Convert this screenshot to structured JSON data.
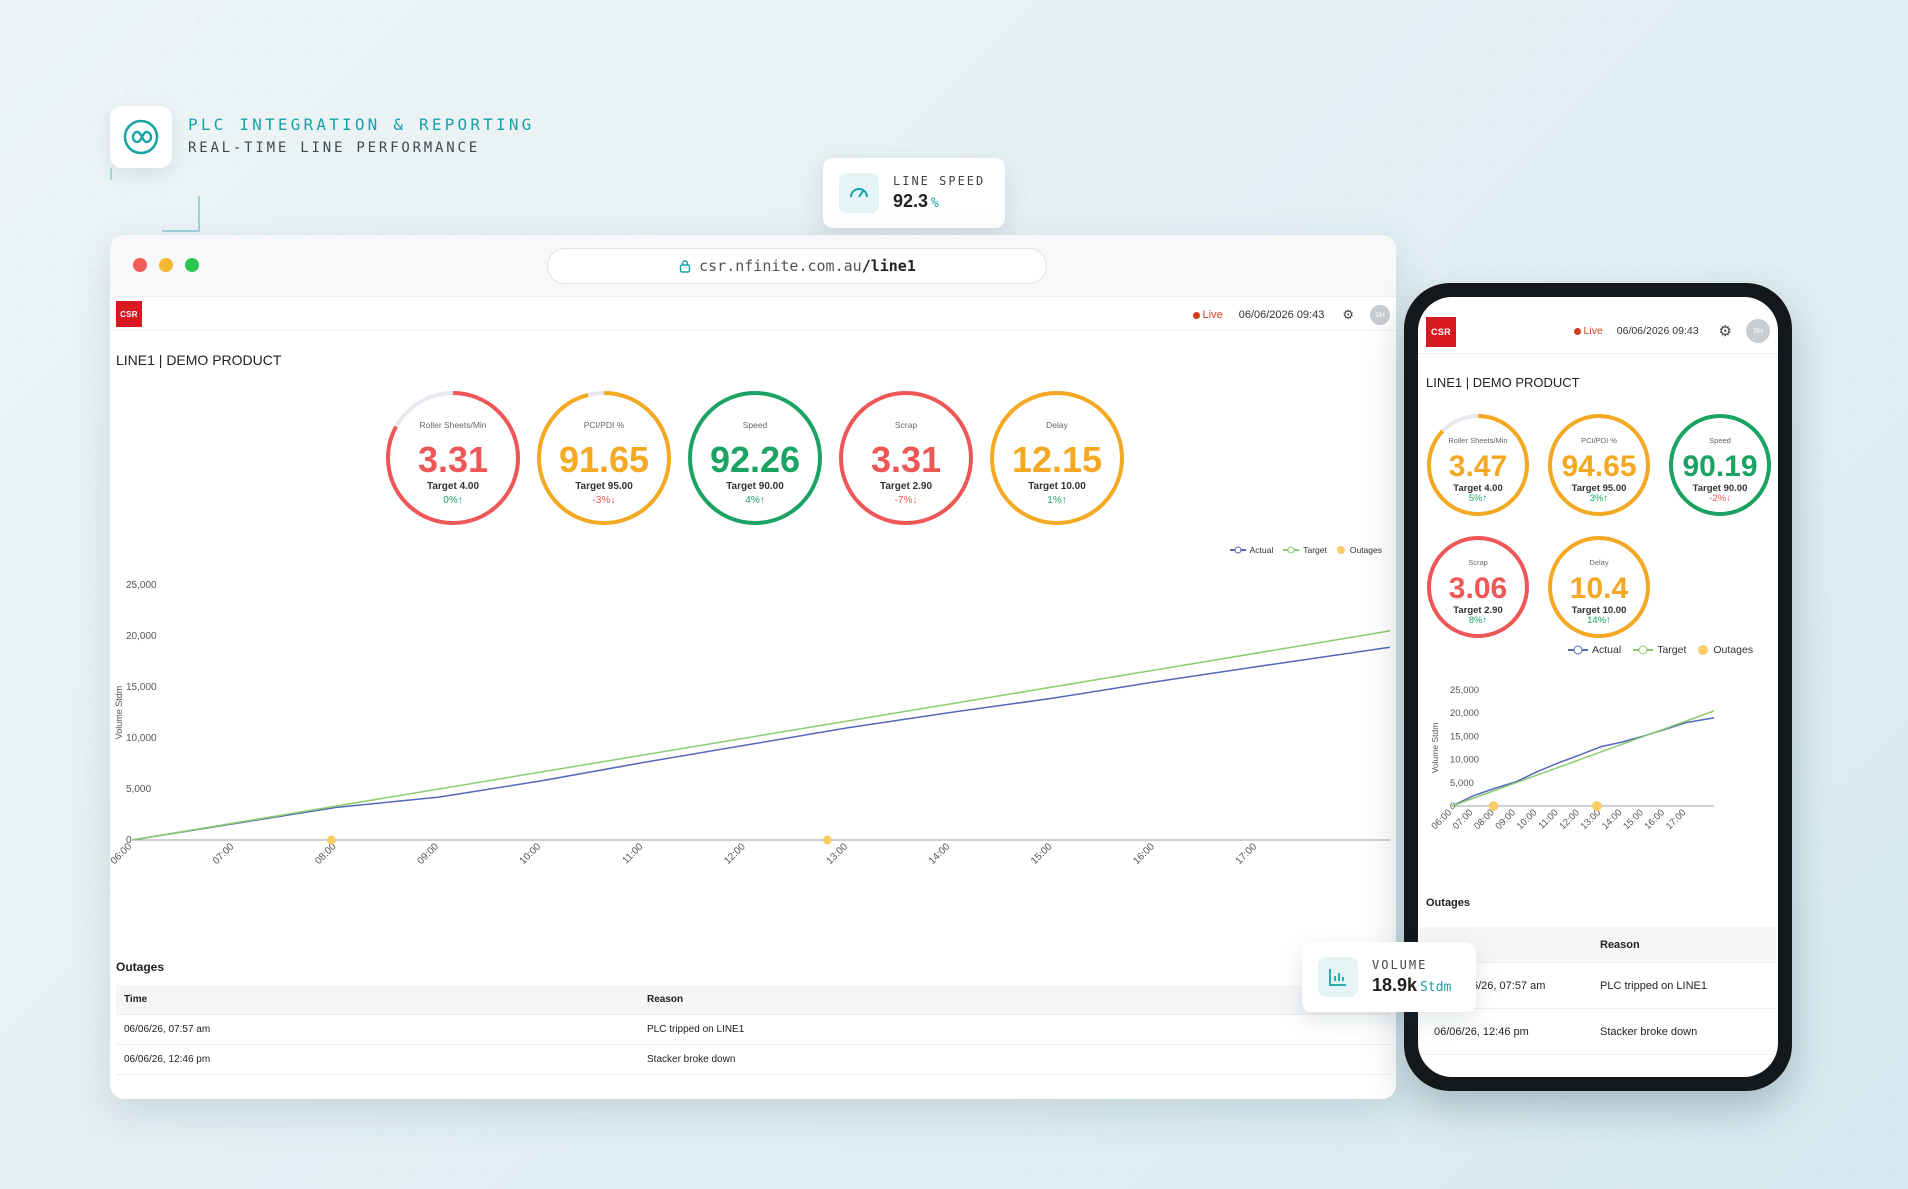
{
  "hero": {
    "icon": "infinity-icon",
    "title": "PLC INTEGRATION & REPORTING",
    "subtitle": "REAL-TIME LINE PERFORMANCE"
  },
  "line_speed_card": {
    "label": "LINE SPEED",
    "value": "92.3",
    "unit": "%",
    "icon": "speedometer-icon"
  },
  "volume_card": {
    "label": "VOLUME",
    "value": "18.9k",
    "unit": "Stdm",
    "icon": "bar-chart-icon"
  },
  "browser": {
    "url_host": "csr.nfinite.com.au",
    "url_path": "/line1"
  },
  "app": {
    "logo": "CSR",
    "live": "Live",
    "datetime": "06/06/2026 09:43",
    "avatar": "SH",
    "title": "LINE1 | DEMO PRODUCT"
  },
  "colors": {
    "red": "#ef5757",
    "amber": "#f5a821",
    "green": "#1aa362",
    "actual": "#5468b8",
    "target": "#8ccc6f",
    "outage": "#f6cd68"
  },
  "desktop_kpis": [
    {
      "label": "Roller Sheets/Min",
      "value": "3.31",
      "target": "Target 4.00",
      "delta": "0%",
      "dir": "up",
      "status": "red",
      "fill": 0.83
    },
    {
      "label": "PCI/PDI %",
      "value": "91.65",
      "target": "Target 95.00",
      "delta": "-3%",
      "dir": "down",
      "status": "amber",
      "fill": 0.96
    },
    {
      "label": "Speed",
      "value": "92.26",
      "target": "Target 90.00",
      "delta": "4%",
      "dir": "up",
      "status": "green",
      "fill": 1
    },
    {
      "label": "Scrap",
      "value": "3.31",
      "target": "Target 2.90",
      "delta": "-7%",
      "dir": "down",
      "status": "red",
      "fill": 1
    },
    {
      "label": "Delay",
      "value": "12.15",
      "target": "Target 10.00",
      "delta": "1%",
      "dir": "up",
      "status": "amber",
      "fill": 1
    }
  ],
  "mobile_kpis": [
    {
      "label": "Roller Sheets/Min",
      "value": "3.47",
      "target": "Target 4.00",
      "delta": "5%",
      "dir": "up",
      "status": "amber",
      "fill": 0.87
    },
    {
      "label": "PCI/PDI %",
      "value": "94.65",
      "target": "Target 95.00",
      "delta": "3%",
      "dir": "up",
      "status": "amber",
      "fill": 1
    },
    {
      "label": "Speed",
      "value": "90.19",
      "target": "Target 90.00",
      "delta": "-2%",
      "dir": "down",
      "status": "green",
      "fill": 1
    },
    {
      "label": "Scrap",
      "value": "3.06",
      "target": "Target 2.90",
      "delta": "8%",
      "dir": "up",
      "status": "red",
      "fill": 1
    },
    {
      "label": "Delay",
      "value": "10.4",
      "target": "Target 10.00",
      "delta": "14%",
      "dir": "up",
      "status": "amber",
      "fill": 1
    }
  ],
  "legend": {
    "actual": "Actual",
    "target": "Target",
    "outages": "Outages"
  },
  "chart_data": [
    {
      "type": "line",
      "ylabel": "Volume Stdm",
      "ylim": [
        0,
        25000
      ],
      "yticks": [
        "25,000",
        "20,000",
        "15,000",
        "10,000",
        "5,000",
        "0"
      ],
      "ytick_values": [
        25000,
        20000,
        15000,
        10000,
        5000,
        0
      ],
      "xticks": [
        "06:00",
        "07:00",
        "08:00",
        "09:00",
        "10:00",
        "11:00",
        "12:00",
        "13:00",
        "14:00",
        "15:00",
        "16:00",
        "17:00"
      ],
      "xlim": [
        6,
        18.3
      ],
      "series": [
        {
          "name": "Actual",
          "x": [
            6,
            8,
            9,
            10,
            11,
            12,
            13,
            14,
            15,
            16,
            17,
            18.3
          ],
          "y": [
            0,
            3200,
            4200,
            5800,
            7600,
            9300,
            11000,
            12500,
            13900,
            15500,
            17000,
            18900
          ]
        },
        {
          "name": "Target",
          "x": [
            6,
            18.3
          ],
          "y": [
            0,
            20500
          ]
        },
        {
          "name": "Outages",
          "x": [
            7.95,
            12.8
          ],
          "y": [
            0,
            0
          ]
        }
      ],
      "legend_position": "top-right"
    },
    {
      "type": "line",
      "ylabel": "Volume Stdm",
      "ylim": [
        0,
        25000
      ],
      "yticks": [
        "25,000",
        "20,000",
        "15,000",
        "10,000",
        "5,000",
        "0"
      ],
      "ytick_values": [
        25000,
        20000,
        15000,
        10000,
        5000,
        0
      ],
      "xticks": [
        "06:00",
        "07:00",
        "08:00",
        "09:00",
        "10:00",
        "11:00",
        "12:00",
        "13:00",
        "14:00",
        "15:00",
        "16:00",
        "17:00"
      ],
      "xlim": [
        6,
        18.3
      ],
      "series": [
        {
          "name": "Actual",
          "x": [
            6,
            7,
            8,
            9,
            10,
            11,
            12,
            13,
            14,
            15,
            16,
            17,
            18.3
          ],
          "y": [
            0,
            2200,
            3800,
            5200,
            7400,
            9300,
            11000,
            12800,
            13800,
            15100,
            16500,
            18000,
            19000
          ]
        },
        {
          "name": "Target",
          "x": [
            6,
            18.3
          ],
          "y": [
            0,
            20500
          ]
        },
        {
          "name": "Outages",
          "x": [
            7.95,
            12.8
          ],
          "y": [
            0,
            0
          ]
        }
      ],
      "legend_position": "top-center"
    }
  ],
  "outages": {
    "title": "Outages",
    "columns": [
      "Time",
      "Reason"
    ],
    "rows": [
      {
        "time": "06/06/26, 07:57 am",
        "reason": "PLC tripped on LINE1"
      },
      {
        "time": "06/06/26, 12:46 pm",
        "reason": "Stacker broke down"
      }
    ],
    "mobile_rows": [
      {
        "time": "6/26, 07:57 am",
        "reason": "PLC tripped on LINE1"
      },
      {
        "time": "06/06/26, 12:46 pm",
        "reason": "Stacker broke down"
      }
    ]
  }
}
